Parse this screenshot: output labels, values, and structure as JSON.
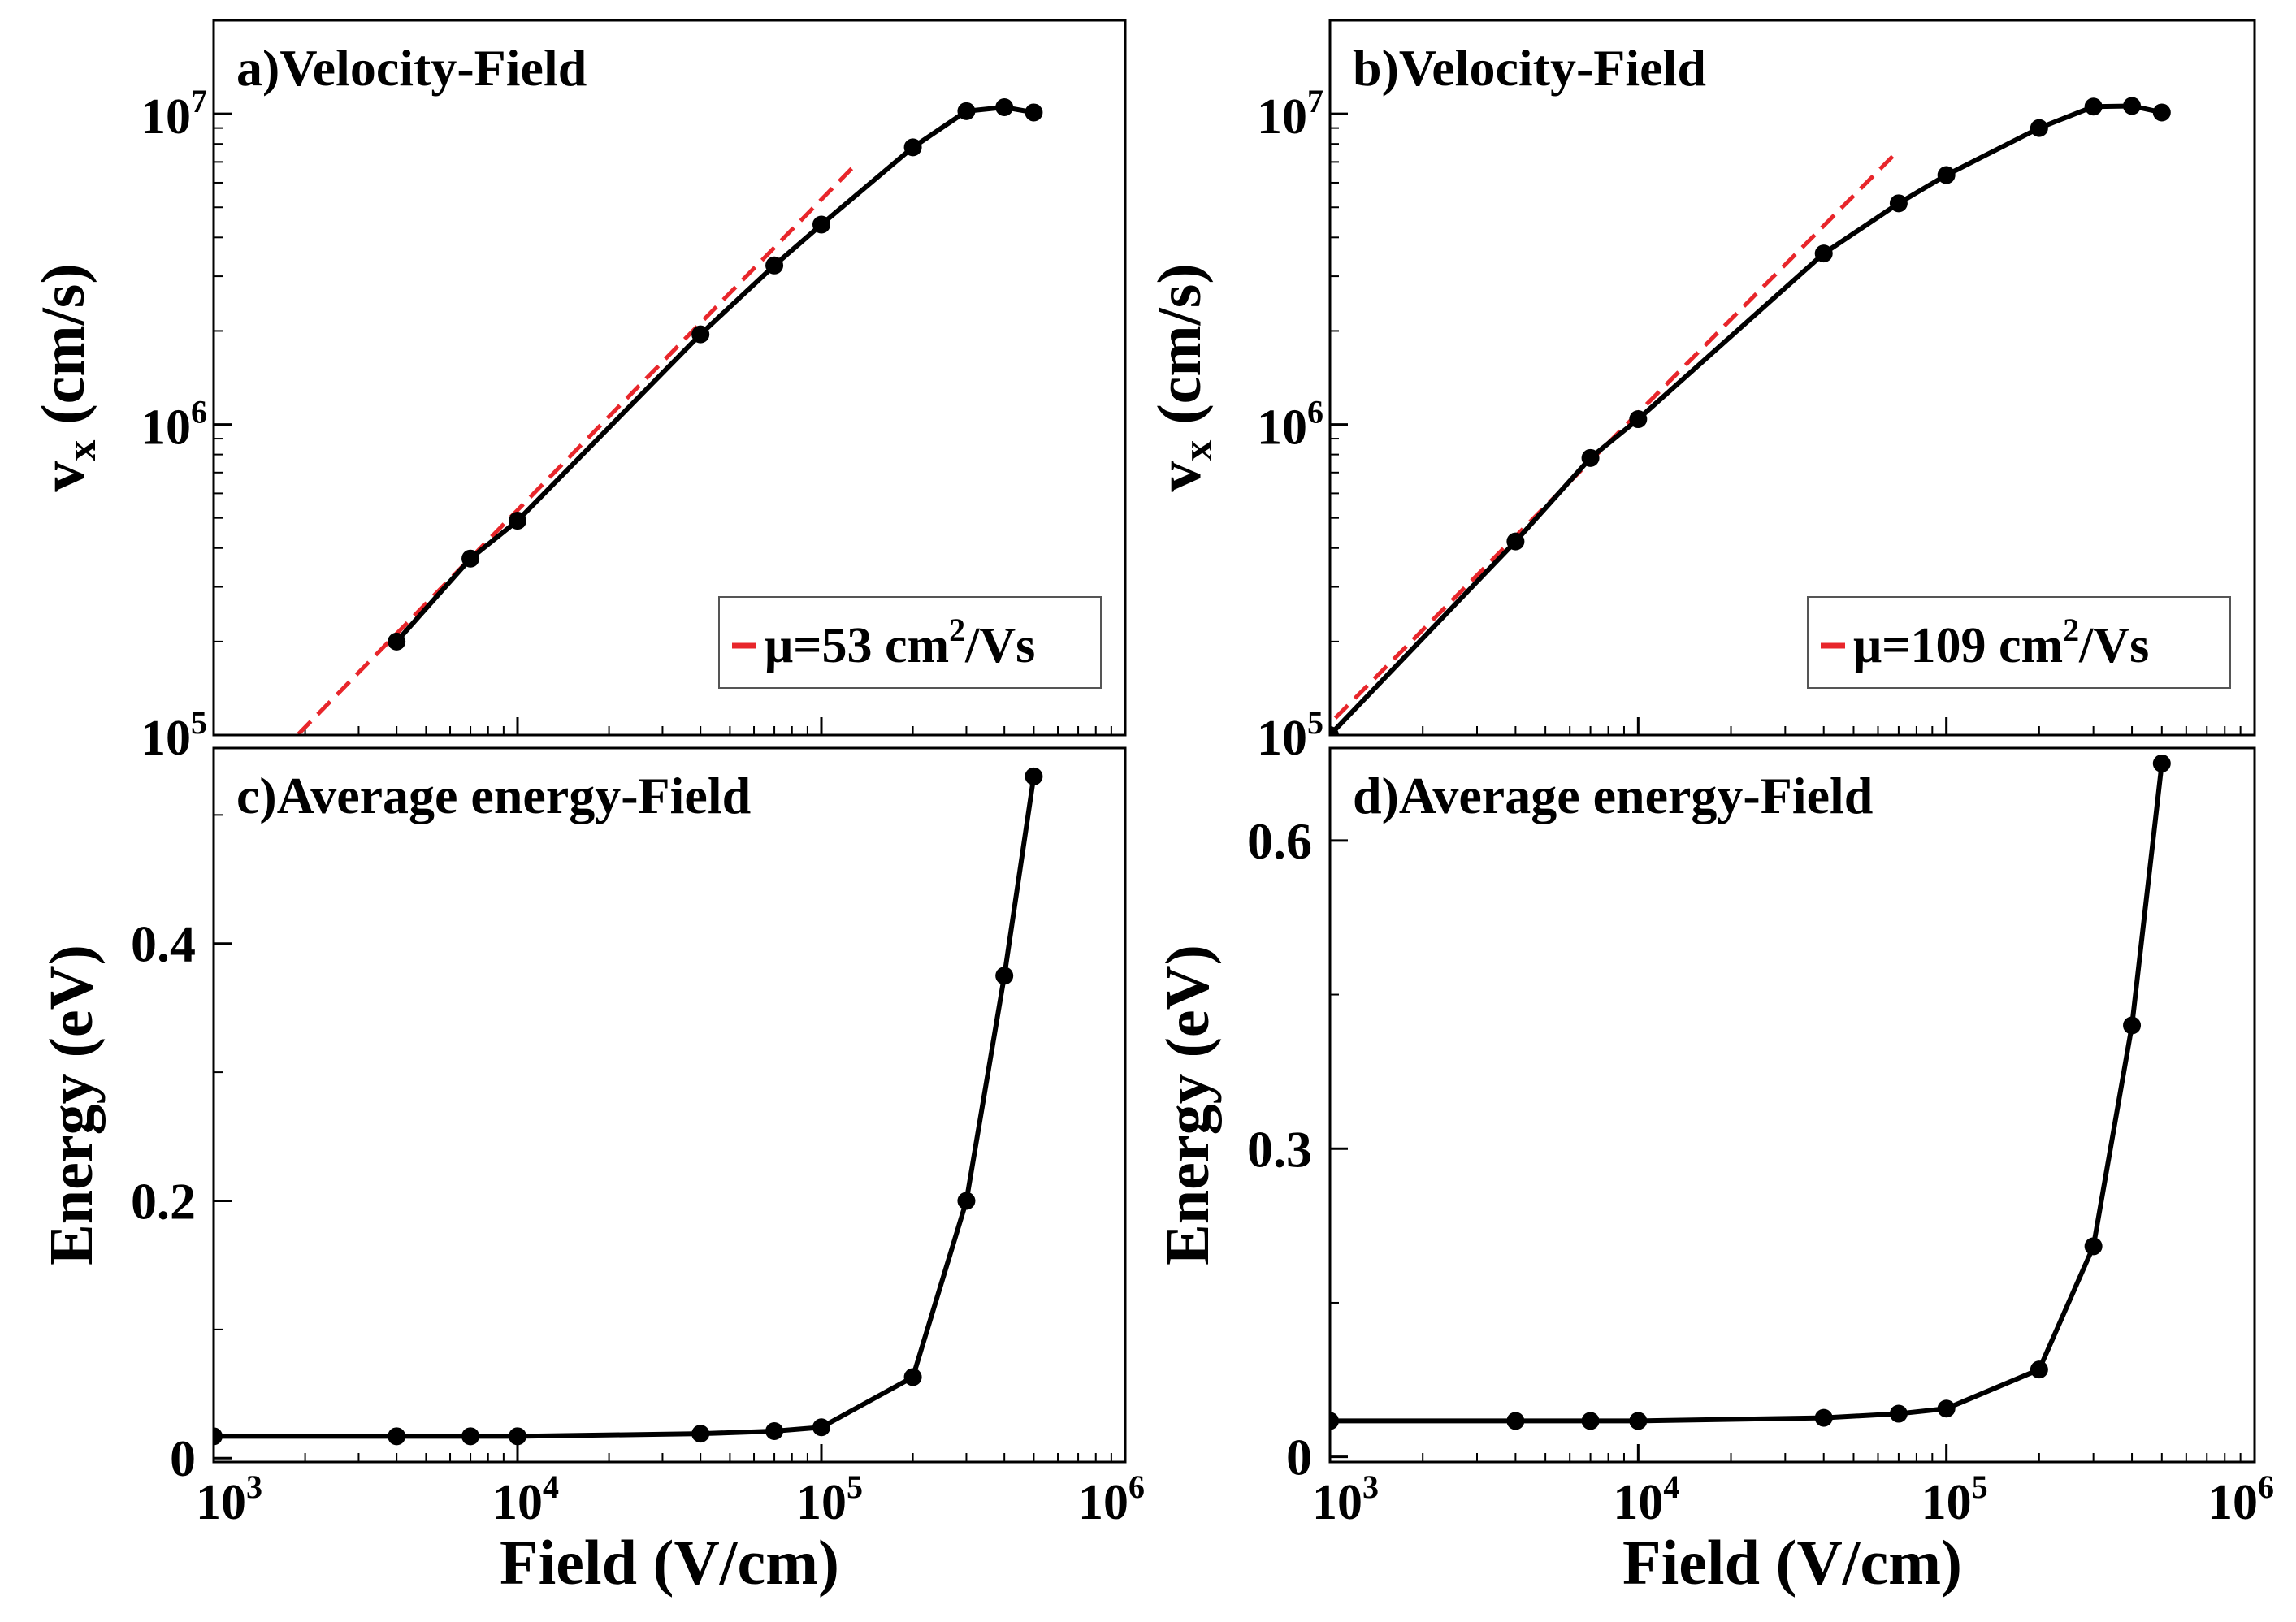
{
  "figure": {
    "xlabel": "Field (V/cm)",
    "x_tick_labels": [
      "10",
      "10",
      "10",
      "10"
    ],
    "x_tick_exponents": [
      "3",
      "4",
      "5",
      "6"
    ],
    "colors": {
      "data": "#000000",
      "fit": "#e8262b",
      "frame": "#000000"
    }
  },
  "chart_data": [
    {
      "id": "a",
      "type": "line",
      "title": "a)Velocity-Field",
      "ylabel": "v",
      "ylabel_sub": "x",
      "ylabel_unit": " (cm/s)",
      "xscale": "log",
      "yscale": "log",
      "xlim": [
        1000,
        1000000
      ],
      "ylim": [
        100000,
        20000000
      ],
      "y_ticks": [
        {
          "value": 100000,
          "base": "10",
          "exp": "5"
        },
        {
          "value": 1000000,
          "base": "10",
          "exp": "6"
        },
        {
          "value": 10000000,
          "base": "10",
          "exp": "7"
        }
      ],
      "series": [
        {
          "name": "data",
          "x": [
            4000,
            7000,
            10000,
            40000,
            70000,
            100000,
            200000,
            300000,
            400000,
            500000
          ],
          "y": [
            200000,
            370000,
            490000,
            1950000,
            3250000,
            4400000,
            7800000,
            10200000,
            10500000,
            10100000
          ]
        },
        {
          "name": "fit",
          "label": "μ=53 cm",
          "label_sup": "2",
          "label_tail": "/Vs",
          "mobility": 53,
          "x": [
            1900,
            130000
          ]
        }
      ],
      "legend": "bottom-right"
    },
    {
      "id": "b",
      "type": "line",
      "title": "b)Velocity-Field",
      "ylabel": "v",
      "ylabel_sub": "x",
      "ylabel_unit": " (cm/s)",
      "xscale": "log",
      "yscale": "log",
      "xlim": [
        1000,
        1000000
      ],
      "ylim": [
        100000,
        20000000
      ],
      "y_ticks": [
        {
          "value": 100000,
          "base": "10",
          "exp": "5"
        },
        {
          "value": 1000000,
          "base": "10",
          "exp": "6"
        },
        {
          "value": 10000000,
          "base": "10",
          "exp": "7"
        }
      ],
      "series": [
        {
          "name": "data",
          "x": [
            1000,
            4000,
            7000,
            10000,
            40000,
            70000,
            100000,
            200000,
            300000,
            400000,
            500000
          ],
          "y": [
            100000,
            420000,
            780000,
            1040000,
            3550000,
            5150000,
            6350000,
            9000000,
            10550000,
            10600000,
            10100000
          ]
        },
        {
          "name": "fit",
          "label": "μ=109 cm",
          "label_sup": "2",
          "label_tail": "/Vs",
          "mobility": 109,
          "x": [
            900,
            70000
          ]
        }
      ],
      "legend": "bottom-right"
    },
    {
      "id": "c",
      "type": "line",
      "title": "c)Average energy-Field",
      "ylabel": "Energy (eV)",
      "xscale": "log",
      "yscale": "linear",
      "xlim": [
        1000,
        1000000
      ],
      "ylim": [
        -0.003,
        0.552
      ],
      "y_ticks": [
        {
          "value": 0,
          "label": "0"
        },
        {
          "value": 0.2,
          "label": "0.2"
        },
        {
          "value": 0.4,
          "label": "0.4"
        }
      ],
      "y_minor": [
        0.1,
        0.3,
        0.5
      ],
      "series": [
        {
          "name": "data",
          "x": [
            1000,
            4000,
            7000,
            10000,
            40000,
            70000,
            100000,
            200000,
            300000,
            400000,
            500000
          ],
          "y": [
            0.017,
            0.017,
            0.017,
            0.017,
            0.019,
            0.021,
            0.024,
            0.063,
            0.2,
            0.375,
            0.53
          ]
        }
      ]
    },
    {
      "id": "d",
      "type": "line",
      "title": "d)Average energy-Field",
      "ylabel": "Energy (eV)",
      "xscale": "log",
      "yscale": "linear",
      "xlim": [
        1000,
        1000000
      ],
      "ylim": [
        -0.005,
        0.69
      ],
      "y_ticks": [
        {
          "value": 0,
          "label": "0"
        },
        {
          "value": 0.3,
          "label": "0.3"
        },
        {
          "value": 0.6,
          "label": "0.6"
        }
      ],
      "y_minor": [
        0.15,
        0.45
      ],
      "series": [
        {
          "name": "data",
          "x": [
            1000,
            4000,
            7000,
            10000,
            40000,
            70000,
            100000,
            200000,
            300000,
            400000,
            500000
          ],
          "y": [
            0.035,
            0.035,
            0.035,
            0.035,
            0.038,
            0.042,
            0.047,
            0.085,
            0.205,
            0.42,
            0.675
          ]
        }
      ]
    }
  ]
}
